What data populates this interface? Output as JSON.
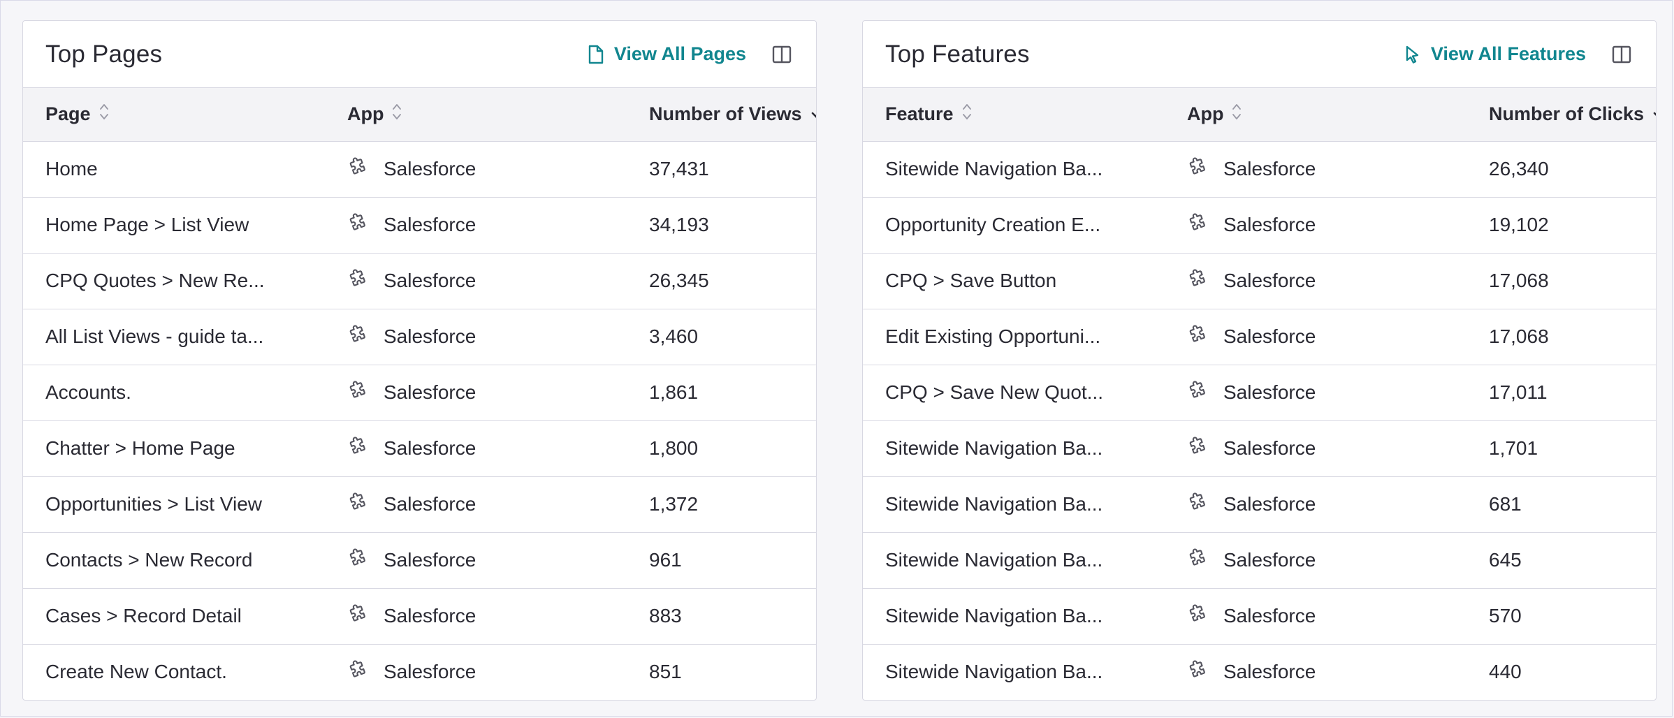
{
  "colors": {
    "accent": "#11868f",
    "border": "#d8d8e2",
    "header_bg": "#f3f3f6",
    "text": "#2a2a33",
    "icon": "#55555f"
  },
  "top_pages": {
    "title": "Top Pages",
    "view_all_label": "View All Pages",
    "view_all_icon": "page-icon",
    "toggle_icon": "split-panel-icon",
    "columns": [
      "Page",
      "App",
      "Number of Views"
    ],
    "rows": [
      {
        "name": "Home",
        "app": "Salesforce",
        "count": "37,431"
      },
      {
        "name": "Home Page > List View",
        "app": "Salesforce",
        "count": "34,193"
      },
      {
        "name": "CPQ Quotes > New Re...",
        "app": "Salesforce",
        "count": "26,345"
      },
      {
        "name": "All List Views - guide ta...",
        "app": "Salesforce",
        "count": "3,460"
      },
      {
        "name": "Accounts.",
        "app": "Salesforce",
        "count": "1,861"
      },
      {
        "name": "Chatter > Home Page",
        "app": "Salesforce",
        "count": "1,800"
      },
      {
        "name": "Opportunities > List View",
        "app": "Salesforce",
        "count": "1,372"
      },
      {
        "name": "Contacts > New Record",
        "app": "Salesforce",
        "count": "961"
      },
      {
        "name": "Cases > Record Detail",
        "app": "Salesforce",
        "count": "883"
      },
      {
        "name": "Create New Contact.",
        "app": "Salesforce",
        "count": "851"
      }
    ]
  },
  "top_features": {
    "title": "Top Features",
    "view_all_label": "View All Features",
    "view_all_icon": "cursor-icon",
    "toggle_icon": "split-panel-icon",
    "columns": [
      "Feature",
      "App",
      "Number of Clicks"
    ],
    "rows": [
      {
        "name": "Sitewide Navigation Ba...",
        "app": "Salesforce",
        "count": "26,340"
      },
      {
        "name": "Opportunity Creation E...",
        "app": "Salesforce",
        "count": "19,102"
      },
      {
        "name": "CPQ > Save Button",
        "app": "Salesforce",
        "count": "17,068"
      },
      {
        "name": "Edit Existing Opportuni...",
        "app": "Salesforce",
        "count": "17,068"
      },
      {
        "name": "CPQ > Save New Quot...",
        "app": "Salesforce",
        "count": "17,011"
      },
      {
        "name": "Sitewide Navigation Ba...",
        "app": "Salesforce",
        "count": "1,701"
      },
      {
        "name": "Sitewide Navigation Ba...",
        "app": "Salesforce",
        "count": "681"
      },
      {
        "name": "Sitewide Navigation Ba...",
        "app": "Salesforce",
        "count": "645"
      },
      {
        "name": "Sitewide Navigation Ba...",
        "app": "Salesforce",
        "count": "570"
      },
      {
        "name": "Sitewide Navigation Ba...",
        "app": "Salesforce",
        "count": "440"
      }
    ]
  }
}
